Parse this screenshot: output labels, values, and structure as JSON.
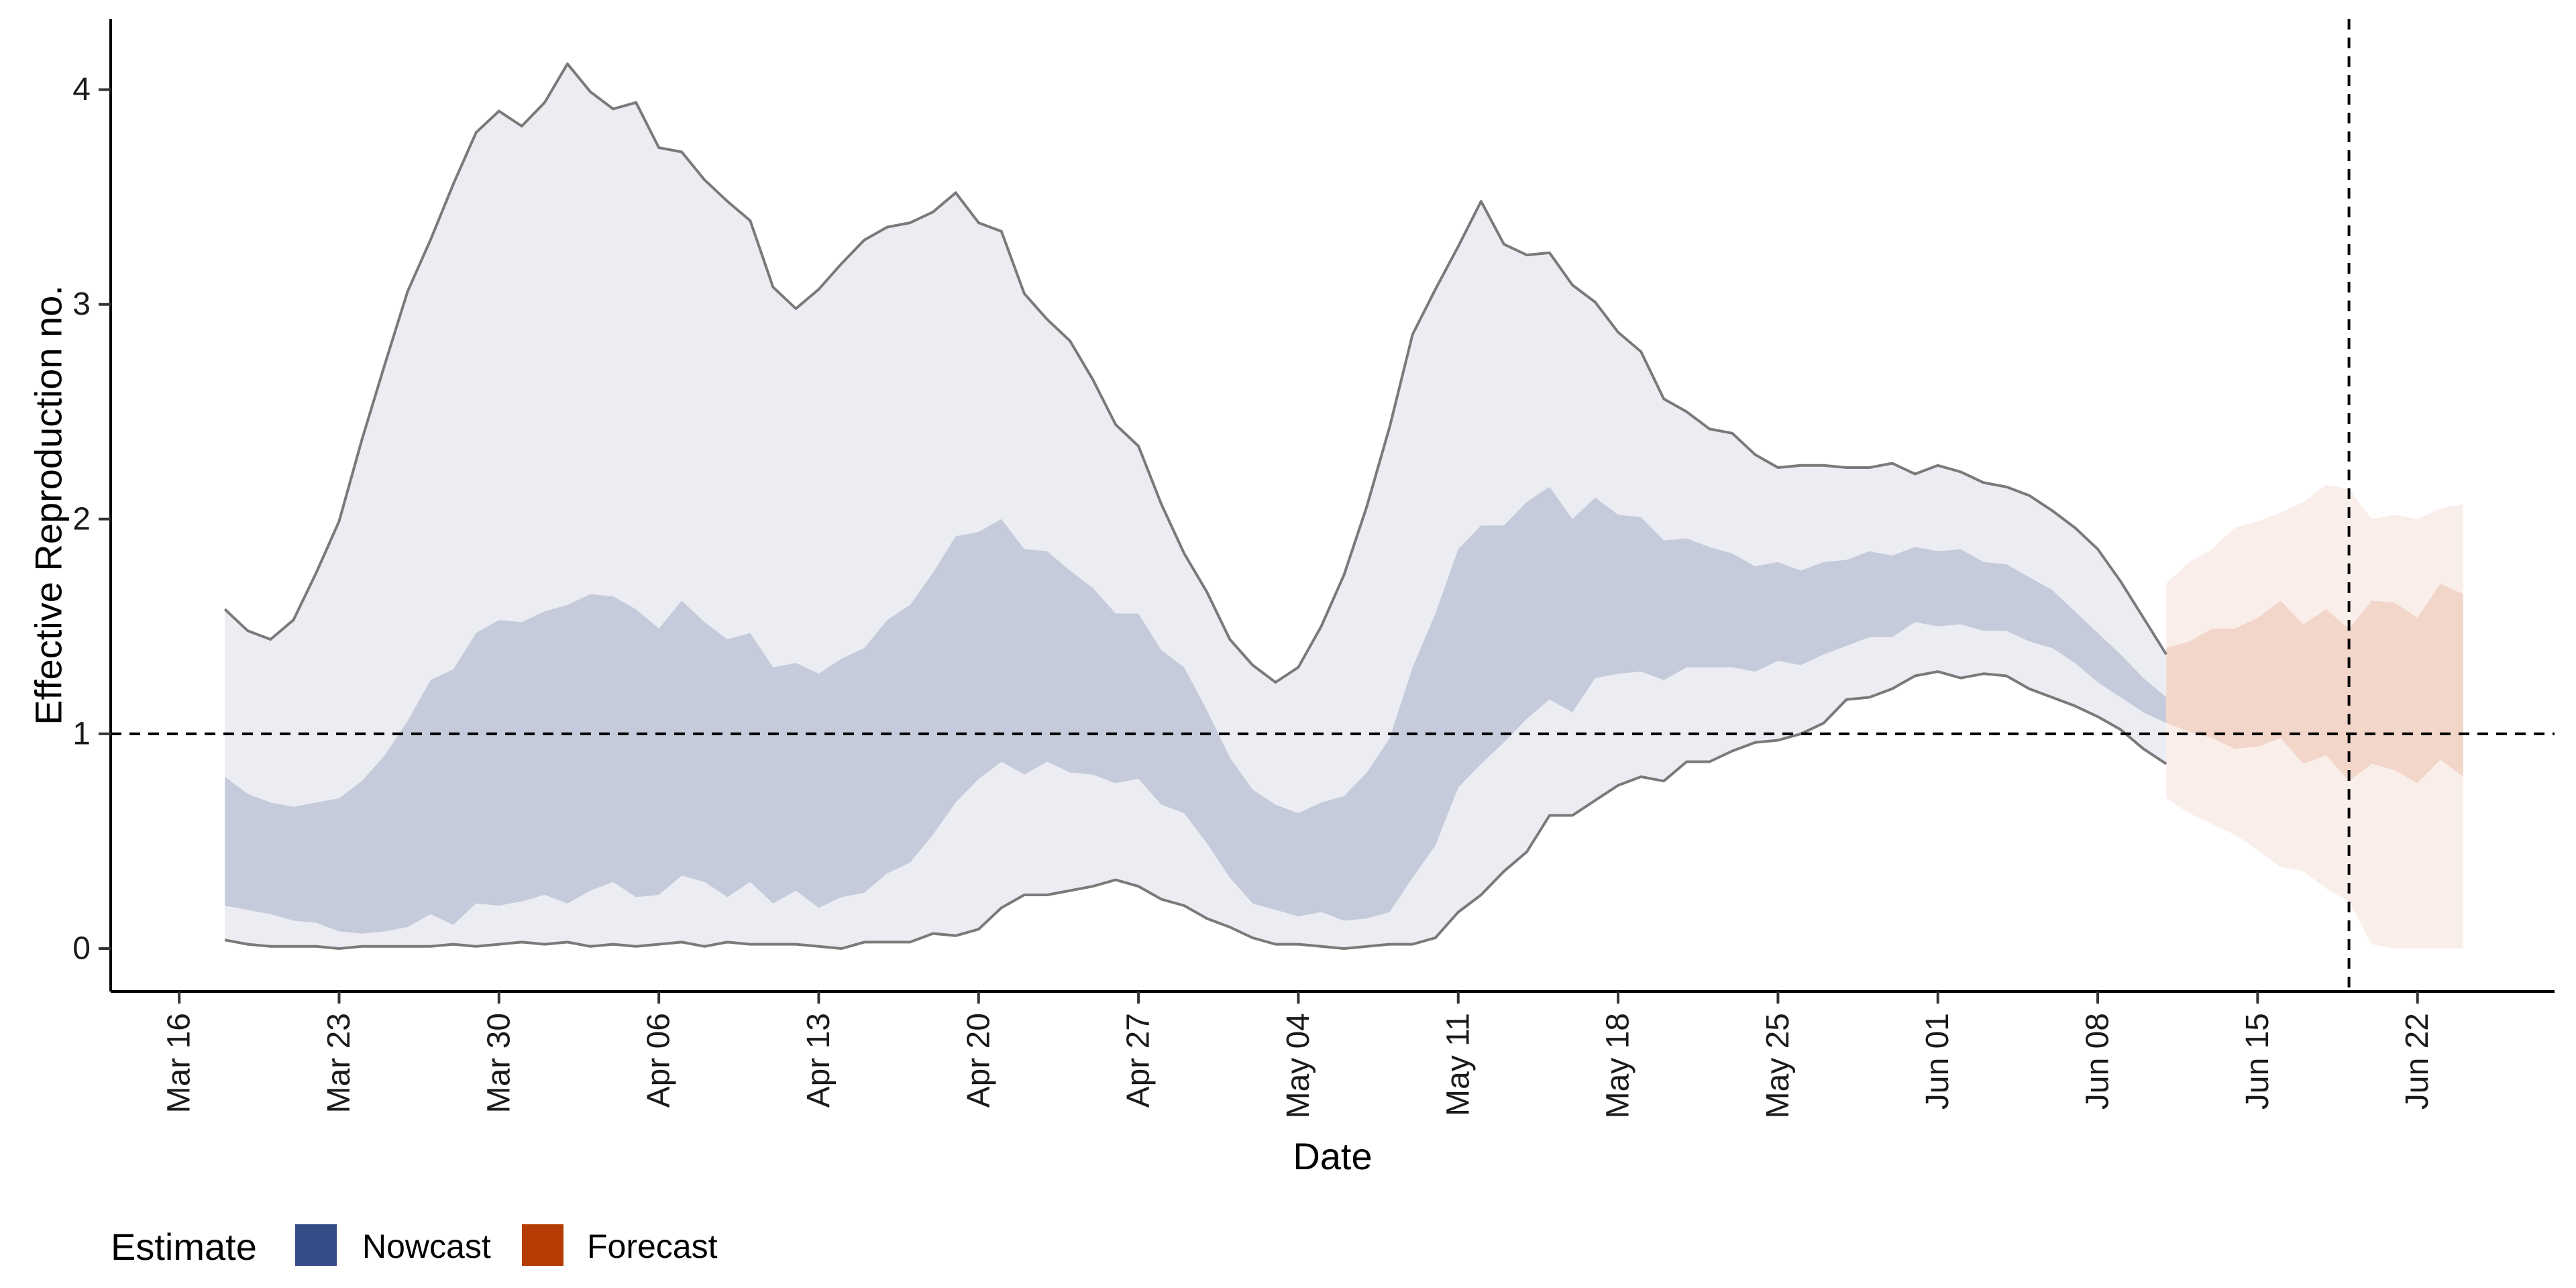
{
  "chart_data": {
    "type": "area",
    "xlabel": "Date",
    "ylabel": "Effective Reproduction no.",
    "xlim": [
      "2020-03-13",
      "2020-06-28"
    ],
    "ylim": [
      -0.2,
      4.33
    ],
    "x_ticks": [
      "2020-03-16",
      "2020-03-23",
      "2020-03-30",
      "2020-04-06",
      "2020-04-13",
      "2020-04-20",
      "2020-04-27",
      "2020-05-04",
      "2020-05-11",
      "2020-05-18",
      "2020-05-25",
      "2020-06-01",
      "2020-06-08",
      "2020-06-15",
      "2020-06-22"
    ],
    "x_tick_labels": [
      "Mar 16",
      "Mar 23",
      "Mar 30",
      "Apr 06",
      "Apr 13",
      "Apr 20",
      "Apr 27",
      "May 04",
      "May 11",
      "May 18",
      "May 25",
      "Jun 01",
      "Jun 08",
      "Jun 15",
      "Jun 22"
    ],
    "y_ticks": [
      0,
      1,
      2,
      3,
      4
    ],
    "y_tick_labels": [
      "0",
      "1",
      "2",
      "3",
      "4"
    ],
    "reference_lines": {
      "horizontal_y": 1,
      "vertical_x": "2020-06-19"
    },
    "grid": false,
    "legend": {
      "title": "Estimate",
      "placement": "bottom-left",
      "entries": [
        {
          "label": "Nowcast",
          "color": "#344d87"
        },
        {
          "label": "Forecast",
          "color": "#b53c05"
        }
      ]
    },
    "series": [
      {
        "name": "Nowcast",
        "start_date": "2020-03-18",
        "upper_90": [
          1.58,
          1.48,
          1.44,
          1.53,
          1.75,
          1.99,
          2.37,
          2.72,
          3.06,
          3.3,
          3.56,
          3.8,
          3.9,
          3.83,
          3.94,
          4.12,
          3.99,
          3.91,
          3.94,
          3.73,
          3.71,
          3.58,
          3.48,
          3.39,
          3.08,
          2.98,
          3.07,
          3.19,
          3.3,
          3.36,
          3.38,
          3.43,
          3.52,
          3.38,
          3.34,
          3.05,
          2.93,
          2.83,
          2.65,
          2.44,
          2.34,
          2.07,
          1.84,
          1.66,
          1.44,
          1.32,
          1.24,
          1.31,
          1.5,
          1.74,
          2.06,
          2.43,
          2.86,
          3.07,
          3.27,
          3.48,
          3.28,
          3.23,
          3.24,
          3.09,
          3.01,
          2.87,
          2.78,
          2.56,
          2.5,
          2.42,
          2.4,
          2.3,
          2.24,
          2.25,
          2.25,
          2.24,
          2.24,
          2.26,
          2.21,
          2.25,
          2.22,
          2.17,
          2.15,
          2.11,
          2.04,
          1.96,
          1.86,
          1.71,
          1.54,
          1.37
        ],
        "lower_90": [
          0.04,
          0.02,
          0.01,
          0.01,
          0.01,
          0.0,
          0.01,
          0.01,
          0.01,
          0.01,
          0.02,
          0.01,
          0.02,
          0.03,
          0.02,
          0.03,
          0.01,
          0.02,
          0.01,
          0.02,
          0.03,
          0.01,
          0.03,
          0.02,
          0.02,
          0.02,
          0.01,
          0.0,
          0.03,
          0.03,
          0.03,
          0.07,
          0.06,
          0.09,
          0.19,
          0.25,
          0.25,
          0.27,
          0.29,
          0.32,
          0.29,
          0.23,
          0.2,
          0.14,
          0.1,
          0.05,
          0.02,
          0.02,
          0.01,
          0.0,
          0.01,
          0.02,
          0.02,
          0.05,
          0.17,
          0.25,
          0.36,
          0.45,
          0.62,
          0.62,
          0.69,
          0.76,
          0.8,
          0.78,
          0.87,
          0.87,
          0.92,
          0.96,
          0.97,
          1.0,
          1.05,
          1.16,
          1.17,
          1.21,
          1.27,
          1.29,
          1.26,
          1.28,
          1.27,
          1.21,
          1.17,
          1.13,
          1.08,
          1.02,
          0.93,
          0.86
        ],
        "upper_50": [
          0.8,
          0.72,
          0.68,
          0.66,
          0.68,
          0.7,
          0.78,
          0.9,
          1.06,
          1.25,
          1.3,
          1.47,
          1.53,
          1.52,
          1.57,
          1.6,
          1.65,
          1.64,
          1.58,
          1.49,
          1.62,
          1.52,
          1.44,
          1.47,
          1.31,
          1.33,
          1.28,
          1.35,
          1.4,
          1.53,
          1.6,
          1.75,
          1.92,
          1.94,
          2.0,
          1.86,
          1.85,
          1.76,
          1.68,
          1.56,
          1.56,
          1.39,
          1.31,
          1.11,
          0.89,
          0.74,
          0.67,
          0.63,
          0.68,
          0.71,
          0.82,
          0.98,
          1.31,
          1.56,
          1.86,
          1.97,
          1.97,
          2.08,
          2.15,
          2.0,
          2.1,
          2.02,
          2.01,
          1.9,
          1.91,
          1.87,
          1.84,
          1.78,
          1.8,
          1.76,
          1.8,
          1.81,
          1.85,
          1.83,
          1.87,
          1.85,
          1.86,
          1.8,
          1.79,
          1.73,
          1.67,
          1.57,
          1.47,
          1.37,
          1.26,
          1.17
        ],
        "lower_50": [
          0.2,
          0.18,
          0.16,
          0.13,
          0.12,
          0.08,
          0.07,
          0.08,
          0.1,
          0.16,
          0.11,
          0.21,
          0.2,
          0.22,
          0.25,
          0.21,
          0.27,
          0.31,
          0.24,
          0.25,
          0.34,
          0.31,
          0.24,
          0.31,
          0.21,
          0.27,
          0.19,
          0.24,
          0.26,
          0.35,
          0.4,
          0.53,
          0.68,
          0.79,
          0.87,
          0.81,
          0.87,
          0.82,
          0.81,
          0.77,
          0.79,
          0.67,
          0.63,
          0.49,
          0.33,
          0.21,
          0.18,
          0.15,
          0.17,
          0.13,
          0.14,
          0.17,
          0.33,
          0.48,
          0.75,
          0.86,
          0.96,
          1.07,
          1.16,
          1.1,
          1.26,
          1.28,
          1.29,
          1.25,
          1.31,
          1.31,
          1.31,
          1.29,
          1.34,
          1.32,
          1.37,
          1.41,
          1.45,
          1.45,
          1.52,
          1.5,
          1.51,
          1.48,
          1.48,
          1.43,
          1.4,
          1.33,
          1.24,
          1.17,
          1.1,
          1.05
        ]
      },
      {
        "name": "Forecast",
        "start_date": "2020-06-11",
        "upper_90": [
          1.7,
          1.8,
          1.86,
          1.96,
          1.99,
          2.03,
          2.08,
          2.16,
          2.14,
          2.0,
          2.02,
          2.0,
          2.05,
          2.07
        ],
        "lower_90": [
          0.7,
          0.63,
          0.58,
          0.53,
          0.46,
          0.38,
          0.36,
          0.28,
          0.22,
          0.02,
          0.0,
          0.0,
          0.0,
          0.0
        ],
        "upper_50": [
          1.4,
          1.43,
          1.49,
          1.49,
          1.54,
          1.62,
          1.51,
          1.58,
          1.49,
          1.62,
          1.61,
          1.54,
          1.7,
          1.65
        ],
        "lower_50": [
          1.05,
          1.01,
          0.98,
          0.93,
          0.94,
          0.98,
          0.86,
          0.9,
          0.78,
          0.86,
          0.83,
          0.77,
          0.88,
          0.8
        ]
      }
    ]
  }
}
